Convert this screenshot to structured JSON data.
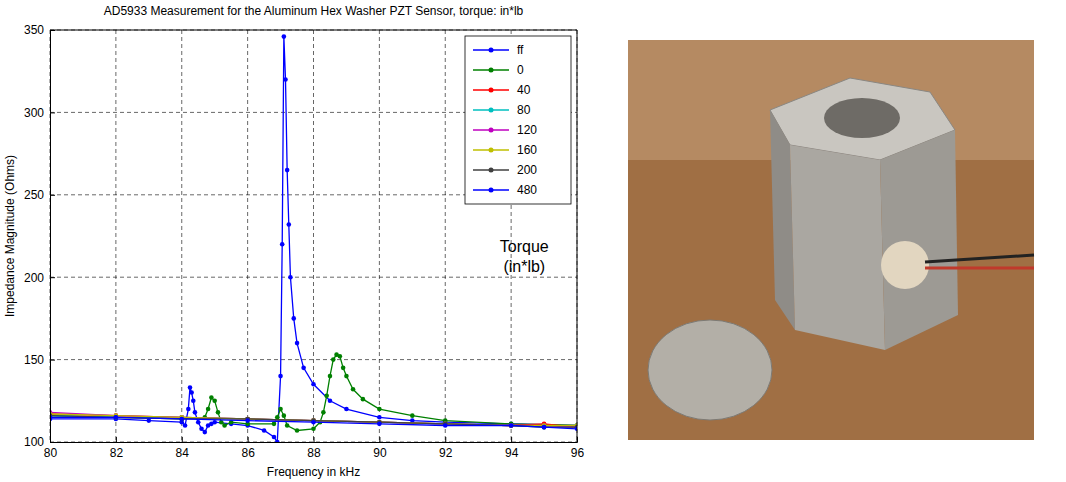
{
  "chart_data": {
    "type": "line",
    "title": "AD5933 Measurement for the Aluminum Hex Washer PZT Sensor, torque: in*lb",
    "x_label": "Frequency in kHz",
    "y_label": "Impedance Magnitude (Ohms)",
    "annotation": [
      "Torque",
      "(in*lb)"
    ],
    "xlim": [
      80,
      96
    ],
    "xticks": [
      80,
      82,
      84,
      86,
      88,
      90,
      92,
      94,
      96
    ],
    "ylim": [
      100,
      350
    ],
    "yticks": [
      100,
      150,
      200,
      250,
      300,
      350
    ],
    "grid": true,
    "legend": "upper right",
    "marker": "o",
    "line_style": "solid",
    "series": [
      {
        "name": "ff",
        "color": "#0000ff",
        "x": [
          80,
          82,
          83,
          84,
          84.1,
          84.2,
          84.25,
          84.3,
          84.35,
          84.4,
          84.5,
          84.6,
          84.7,
          84.8,
          84.9,
          85,
          85.5,
          86,
          86.5,
          86.8,
          86.9,
          87,
          87.05,
          87.1,
          87.15,
          87.2,
          87.25,
          87.3,
          87.4,
          87.5,
          87.7,
          88,
          88.5,
          89,
          90,
          91,
          92,
          94,
          96
        ],
        "values": [
          114,
          114,
          113,
          112,
          110,
          120,
          133,
          130,
          125,
          118,
          112,
          108,
          106,
          110,
          111,
          112,
          111,
          110,
          107,
          103,
          100,
          140,
          220,
          346,
          320,
          265,
          232,
          200,
          175,
          160,
          145,
          135,
          125,
          120,
          115,
          113,
          112,
          111,
          110
        ]
      },
      {
        "name": "0",
        "color": "#008000",
        "x": [
          80,
          82,
          84,
          84.7,
          84.8,
          84.9,
          85,
          85.1,
          85.2,
          85.3,
          85.5,
          86,
          86.8,
          86.9,
          87,
          87.1,
          87.2,
          87.5,
          88,
          88.2,
          88.3,
          88.4,
          88.5,
          88.6,
          88.7,
          88.8,
          88.9,
          89,
          89.2,
          89.5,
          90,
          91,
          92,
          94,
          96
        ],
        "values": [
          116,
          115,
          114,
          115,
          120,
          127,
          125,
          118,
          112,
          110,
          112,
          111,
          111,
          115,
          120,
          116,
          110,
          107,
          108,
          112,
          118,
          128,
          140,
          150,
          153,
          152,
          145,
          140,
          132,
          126,
          120,
          116,
          113,
          111,
          110
        ]
      },
      {
        "name": "40",
        "color": "#ff0000",
        "x": [
          80,
          82,
          84,
          86,
          88,
          90,
          92,
          94,
          95,
          96
        ],
        "values": [
          117,
          116,
          115,
          114,
          113,
          112,
          111,
          110,
          111,
          109
        ]
      },
      {
        "name": "80",
        "color": "#00bfbf",
        "x": [
          80,
          82,
          84,
          86,
          88,
          90,
          92,
          94,
          95,
          96
        ],
        "values": [
          116,
          115,
          115,
          114,
          113,
          112,
          111,
          110,
          109,
          109
        ]
      },
      {
        "name": "120",
        "color": "#bf00bf",
        "x": [
          80,
          82,
          84,
          86,
          88,
          90,
          92,
          94,
          95,
          96
        ],
        "values": [
          118,
          116,
          115,
          114,
          113,
          112,
          111,
          110,
          110,
          109
        ]
      },
      {
        "name": "160",
        "color": "#bfbf00",
        "x": [
          80,
          82,
          84,
          86,
          88,
          90,
          92,
          94,
          95,
          96
        ],
        "values": [
          117,
          116,
          115,
          114,
          113,
          112,
          111,
          110,
          110,
          110
        ]
      },
      {
        "name": "200",
        "color": "#404040",
        "x": [
          80,
          82,
          84,
          86,
          88,
          90,
          92,
          94,
          95,
          96
        ],
        "values": [
          116,
          115,
          114,
          114,
          113,
          112,
          111,
          110,
          109,
          109
        ]
      },
      {
        "name": "480",
        "color": "#0000ff",
        "x": [
          80,
          82,
          84,
          86,
          88,
          90,
          92,
          94,
          95,
          96
        ],
        "values": [
          115,
          115,
          114,
          113,
          112,
          111,
          110,
          110,
          109,
          108
        ]
      }
    ]
  }
}
